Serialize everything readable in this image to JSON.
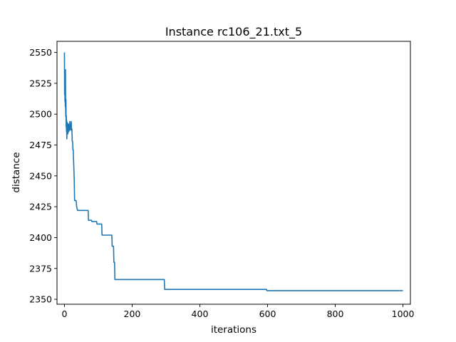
{
  "chart_data": {
    "type": "line",
    "title": "Instance rc106_21.txt_5",
    "xlabel": "iterations",
    "ylabel": "distance",
    "xlim": [
      -22,
      1022
    ],
    "ylim": [
      2346,
      2559
    ],
    "xticks": [
      0,
      200,
      400,
      600,
      800,
      1000
    ],
    "yticks": [
      2350,
      2375,
      2400,
      2425,
      2450,
      2475,
      2500,
      2525,
      2550
    ],
    "grid": false,
    "line_color": "#1f77b4",
    "series": [
      {
        "x": [
          0,
          0.5,
          1,
          1.5,
          2,
          2.5,
          3,
          3.5,
          4,
          4.5,
          5,
          5.5,
          6,
          6.5,
          7,
          7.5,
          8,
          9,
          10,
          11,
          12,
          13,
          14,
          15,
          16,
          17,
          18,
          19,
          20,
          21,
          22,
          23,
          24,
          25,
          26,
          27,
          28,
          29,
          30,
          31,
          32,
          33,
          34,
          35,
          36,
          37,
          38,
          39,
          40,
          42,
          44,
          46,
          70,
          71,
          80,
          81,
          95,
          96,
          110,
          111,
          140,
          141,
          145,
          146,
          148,
          149,
          295,
          296,
          597,
          598,
          1000
        ],
        "y": [
          2550,
          2516,
          2533,
          2510,
          2525,
          2506,
          2536,
          2505,
          2498,
          2512,
          2490,
          2499,
          2486,
          2495,
          2480,
          2488,
          2484,
          2493,
          2484,
          2486,
          2492,
          2486,
          2488,
          2487,
          2494,
          2488,
          2490,
          2487,
          2494,
          2488,
          2488,
          2478,
          2478,
          2471,
          2471,
          2462,
          2455,
          2446,
          2430,
          2430,
          2430,
          2430,
          2430,
          2429,
          2425,
          2424,
          2423,
          2422,
          2422,
          2422,
          2422,
          2422,
          2422,
          2414,
          2414,
          2413,
          2413,
          2411,
          2411,
          2402,
          2402,
          2393,
          2393,
          2380,
          2380,
          2366,
          2366,
          2358,
          2358,
          2357,
          2357
        ]
      }
    ]
  }
}
